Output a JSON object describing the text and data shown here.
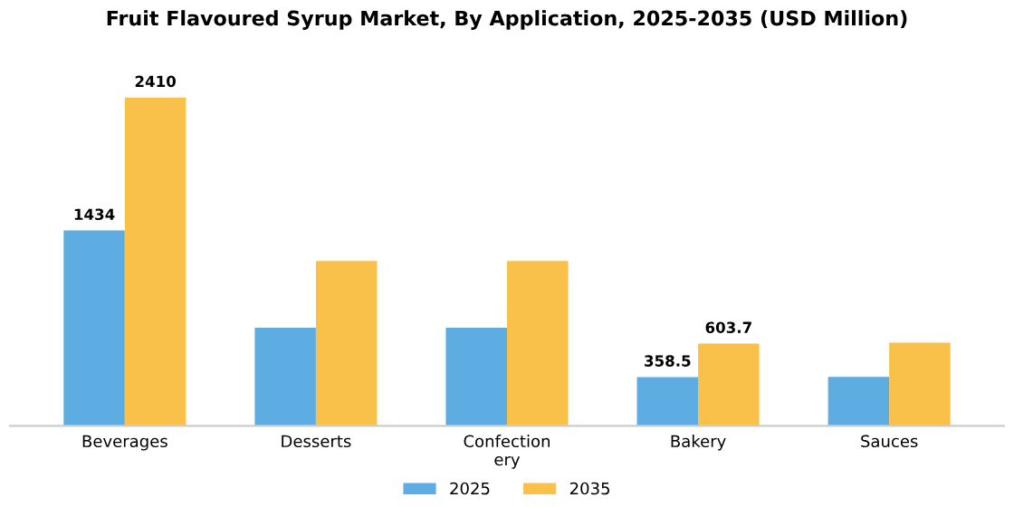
{
  "chart_data": {
    "type": "bar",
    "title": "Fruit Flavoured Syrup Market, By Application, 2025-2035 (USD Million)",
    "categories": [
      "Beverages",
      "Desserts",
      "Confection\nery",
      "Bakery",
      "Sauces"
    ],
    "series": [
      {
        "name": "2025",
        "color": "#5dade2",
        "values": [
          1434,
          720,
          720,
          358.5,
          360
        ],
        "value_labels": [
          "1434",
          null,
          null,
          "358.5",
          null
        ]
      },
      {
        "name": "2035",
        "color": "#f9c04a",
        "values": [
          2410,
          1210,
          1210,
          603.7,
          610
        ],
        "value_labels": [
          "2410",
          null,
          null,
          "603.7",
          null
        ]
      }
    ],
    "legend": "bottom",
    "grid": false
  }
}
